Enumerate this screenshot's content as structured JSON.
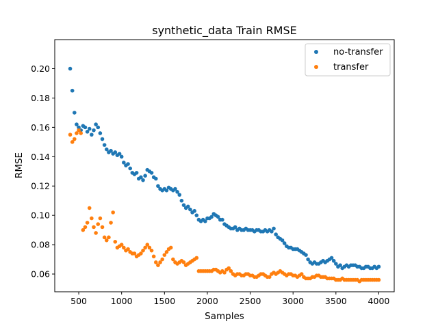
{
  "chart_data": {
    "type": "scatter",
    "title": "synthetic_data Train RMSE",
    "xlabel": "Samples",
    "ylabel": "RMSE",
    "xlim": [
      220,
      4180
    ],
    "ylim": [
      0.0479,
      0.2198
    ],
    "x_ticks": [
      500,
      1000,
      1500,
      2000,
      2500,
      3000,
      3500,
      4000
    ],
    "x_tick_labels": [
      "500",
      "1000",
      "1500",
      "2000",
      "2500",
      "3000",
      "3500",
      "4000"
    ],
    "y_ticks": [
      0.06,
      0.08,
      0.1,
      0.12,
      0.14,
      0.16,
      0.18,
      0.2
    ],
    "y_tick_labels": [
      "0.06",
      "0.08",
      "0.10",
      "0.12",
      "0.14",
      "0.16",
      "0.18",
      "0.20"
    ],
    "grid": false,
    "legend": "top-right",
    "series": [
      {
        "name": "no-transfer",
        "color": "#1f77b4",
        "x": [
          400,
          425,
          450,
          475,
          500,
          525,
          550,
          575,
          600,
          625,
          650,
          675,
          700,
          725,
          750,
          775,
          800,
          825,
          850,
          875,
          900,
          925,
          950,
          975,
          1000,
          1025,
          1050,
          1075,
          1100,
          1125,
          1150,
          1175,
          1200,
          1225,
          1250,
          1275,
          1300,
          1325,
          1350,
          1375,
          1400,
          1425,
          1450,
          1475,
          1500,
          1525,
          1550,
          1575,
          1600,
          1625,
          1650,
          1675,
          1700,
          1725,
          1750,
          1775,
          1800,
          1825,
          1850,
          1875,
          1900,
          1925,
          1950,
          1975,
          2000,
          2025,
          2050,
          2075,
          2100,
          2125,
          2150,
          2175,
          2200,
          2225,
          2250,
          2275,
          2300,
          2325,
          2350,
          2375,
          2400,
          2425,
          2450,
          2475,
          2500,
          2525,
          2550,
          2575,
          2600,
          2625,
          2650,
          2675,
          2700,
          2725,
          2750,
          2775,
          2800,
          2825,
          2850,
          2875,
          2900,
          2925,
          2950,
          2975,
          3000,
          3025,
          3050,
          3075,
          3100,
          3125,
          3150,
          3175,
          3200,
          3225,
          3250,
          3275,
          3300,
          3325,
          3350,
          3375,
          3400,
          3425,
          3450,
          3475,
          3500,
          3525,
          3550,
          3575,
          3600,
          3625,
          3650,
          3675,
          3700,
          3725,
          3750,
          3775,
          3800,
          3825,
          3850,
          3875,
          3900,
          3925,
          3950,
          3975,
          4000
        ],
        "y": [
          0.2,
          0.185,
          0.17,
          0.162,
          0.16,
          0.158,
          0.161,
          0.16,
          0.157,
          0.159,
          0.155,
          0.158,
          0.162,
          0.16,
          0.156,
          0.152,
          0.148,
          0.145,
          0.143,
          0.144,
          0.142,
          0.143,
          0.141,
          0.142,
          0.14,
          0.136,
          0.134,
          0.135,
          0.132,
          0.129,
          0.128,
          0.129,
          0.125,
          0.126,
          0.124,
          0.127,
          0.131,
          0.13,
          0.129,
          0.126,
          0.125,
          0.12,
          0.118,
          0.117,
          0.118,
          0.117,
          0.119,
          0.118,
          0.117,
          0.118,
          0.116,
          0.114,
          0.11,
          0.107,
          0.105,
          0.106,
          0.104,
          0.102,
          0.103,
          0.1,
          0.097,
          0.096,
          0.097,
          0.096,
          0.098,
          0.098,
          0.099,
          0.101,
          0.1,
          0.099,
          0.097,
          0.097,
          0.094,
          0.093,
          0.092,
          0.091,
          0.091,
          0.092,
          0.09,
          0.091,
          0.09,
          0.09,
          0.091,
          0.09,
          0.09,
          0.09,
          0.089,
          0.09,
          0.09,
          0.089,
          0.089,
          0.09,
          0.089,
          0.09,
          0.089,
          0.091,
          0.087,
          0.085,
          0.084,
          0.083,
          0.081,
          0.079,
          0.078,
          0.078,
          0.077,
          0.077,
          0.077,
          0.076,
          0.075,
          0.074,
          0.073,
          0.07,
          0.068,
          0.067,
          0.068,
          0.067,
          0.067,
          0.068,
          0.069,
          0.068,
          0.069,
          0.07,
          0.071,
          0.069,
          0.067,
          0.065,
          0.066,
          0.064,
          0.065,
          0.066,
          0.065,
          0.066,
          0.066,
          0.066,
          0.065,
          0.065,
          0.064,
          0.064,
          0.065,
          0.065,
          0.064,
          0.064,
          0.065,
          0.064,
          0.065
        ]
      },
      {
        "name": "transfer",
        "color": "#ff7f0e",
        "x": [
          400,
          425,
          450,
          475,
          500,
          525,
          550,
          575,
          600,
          625,
          650,
          675,
          700,
          725,
          750,
          775,
          800,
          825,
          850,
          875,
          900,
          925,
          950,
          975,
          1000,
          1025,
          1050,
          1075,
          1100,
          1125,
          1150,
          1175,
          1200,
          1225,
          1250,
          1275,
          1300,
          1325,
          1350,
          1375,
          1400,
          1425,
          1450,
          1475,
          1500,
          1525,
          1550,
          1575,
          1600,
          1625,
          1650,
          1675,
          1700,
          1725,
          1750,
          1775,
          1800,
          1825,
          1850,
          1875,
          1900,
          1925,
          1950,
          1975,
          2000,
          2025,
          2050,
          2075,
          2100,
          2125,
          2150,
          2175,
          2200,
          2225,
          2250,
          2275,
          2300,
          2325,
          2350,
          2375,
          2400,
          2425,
          2450,
          2475,
          2500,
          2525,
          2550,
          2575,
          2600,
          2625,
          2650,
          2675,
          2700,
          2725,
          2750,
          2775,
          2800,
          2825,
          2850,
          2875,
          2900,
          2925,
          2950,
          2975,
          3000,
          3025,
          3050,
          3075,
          3100,
          3125,
          3150,
          3175,
          3200,
          3225,
          3250,
          3275,
          3300,
          3325,
          3350,
          3375,
          3400,
          3425,
          3450,
          3475,
          3500,
          3525,
          3550,
          3575,
          3600,
          3625,
          3650,
          3675,
          3700,
          3725,
          3750,
          3775,
          3800,
          3825,
          3850,
          3875,
          3900,
          3925,
          3950,
          3975,
          4000
        ],
        "y": [
          0.155,
          0.15,
          0.152,
          0.156,
          0.158,
          0.156,
          0.09,
          0.092,
          0.095,
          0.105,
          0.098,
          0.092,
          0.088,
          0.094,
          0.098,
          0.092,
          0.085,
          0.083,
          0.085,
          0.095,
          0.102,
          0.082,
          0.078,
          0.079,
          0.08,
          0.078,
          0.076,
          0.077,
          0.075,
          0.074,
          0.074,
          0.072,
          0.073,
          0.074,
          0.076,
          0.078,
          0.08,
          0.078,
          0.076,
          0.072,
          0.068,
          0.066,
          0.068,
          0.07,
          0.073,
          0.075,
          0.077,
          0.078,
          0.07,
          0.068,
          0.067,
          0.068,
          0.069,
          0.068,
          0.066,
          0.067,
          0.068,
          0.069,
          0.07,
          0.071,
          0.062,
          0.062,
          0.062,
          0.062,
          0.062,
          0.062,
          0.062,
          0.063,
          0.063,
          0.062,
          0.061,
          0.062,
          0.061,
          0.063,
          0.064,
          0.062,
          0.06,
          0.059,
          0.06,
          0.06,
          0.059,
          0.059,
          0.06,
          0.06,
          0.059,
          0.059,
          0.058,
          0.058,
          0.059,
          0.06,
          0.06,
          0.059,
          0.058,
          0.058,
          0.06,
          0.061,
          0.06,
          0.061,
          0.062,
          0.061,
          0.06,
          0.059,
          0.06,
          0.06,
          0.059,
          0.059,
          0.058,
          0.059,
          0.06,
          0.058,
          0.057,
          0.057,
          0.057,
          0.058,
          0.058,
          0.059,
          0.059,
          0.058,
          0.058,
          0.058,
          0.057,
          0.057,
          0.057,
          0.057,
          0.056,
          0.056,
          0.056,
          0.057,
          0.056,
          0.056,
          0.056,
          0.056,
          0.056,
          0.056,
          0.056,
          0.055,
          0.056,
          0.056,
          0.056,
          0.056,
          0.056,
          0.056,
          0.056,
          0.056,
          0.056
        ]
      }
    ]
  }
}
